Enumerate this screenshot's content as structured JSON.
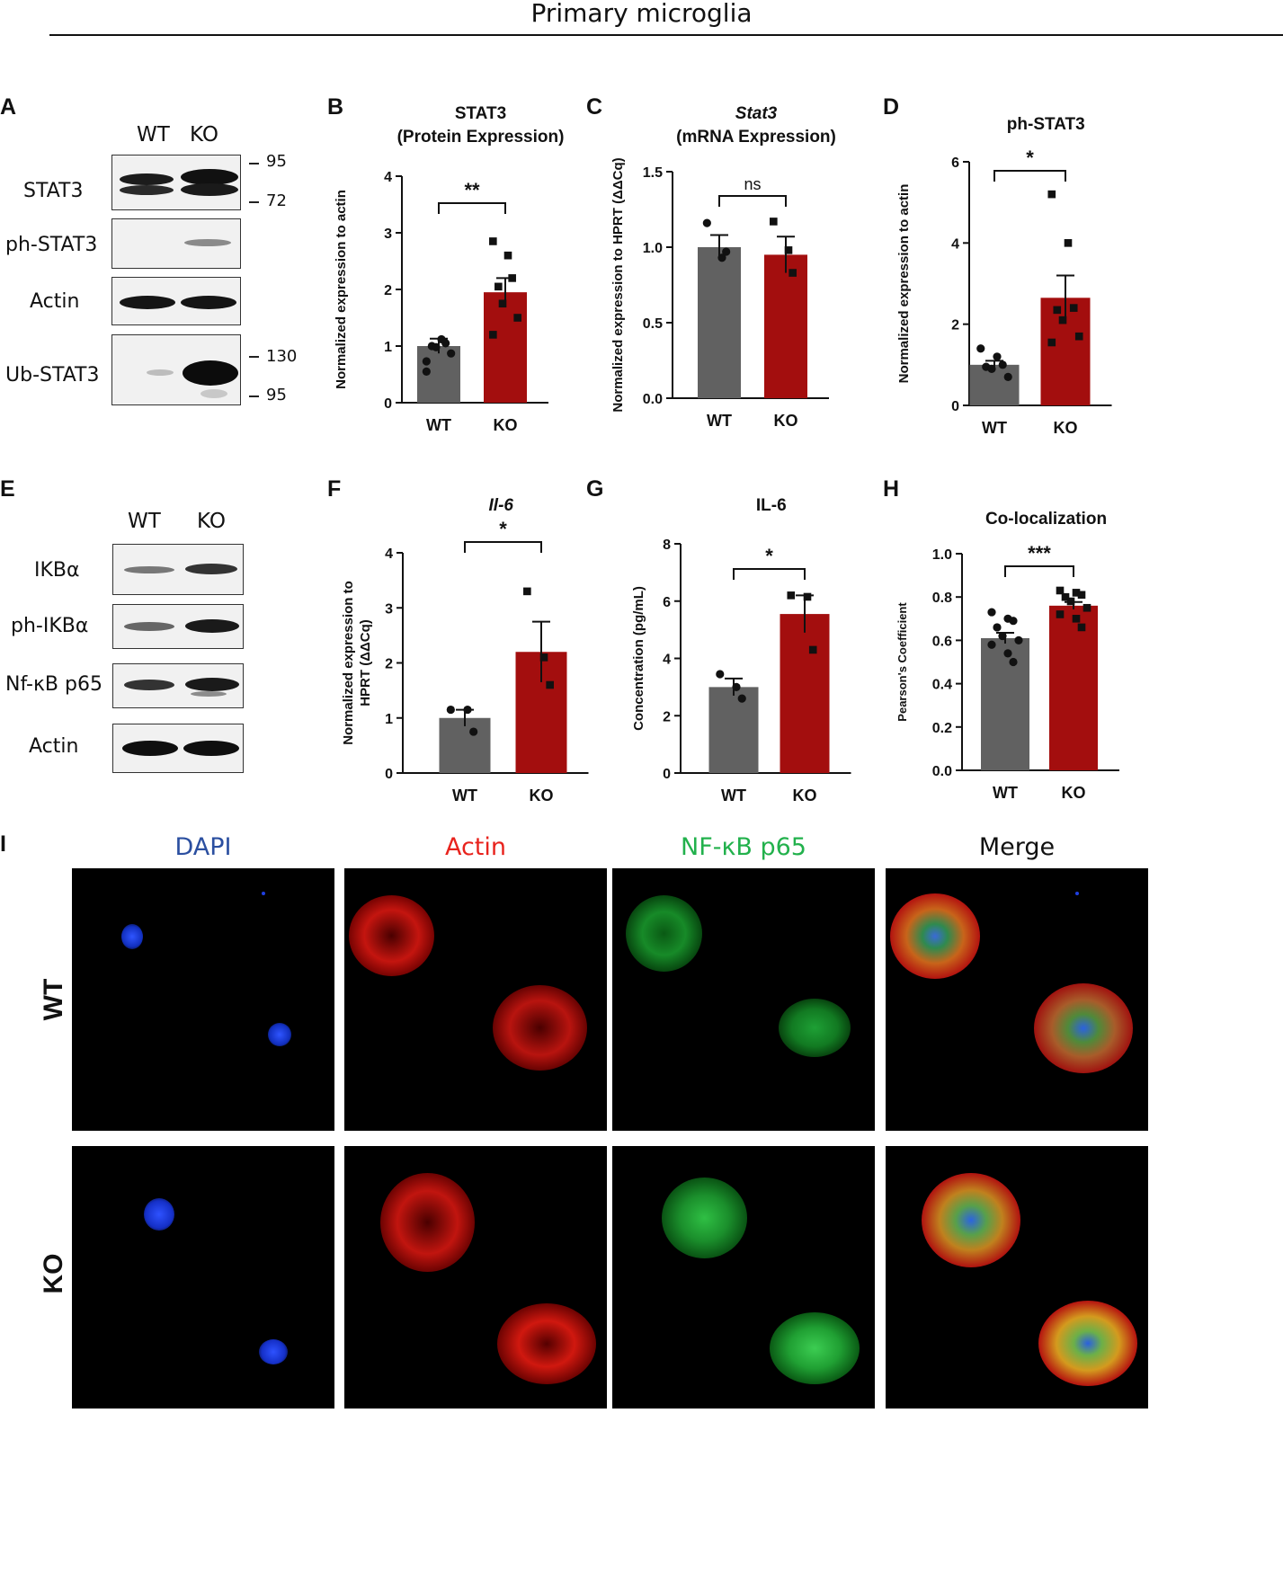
{
  "figure": {
    "title": "Primary microglia",
    "colors": {
      "wt": "#616161",
      "ko": "#a30e0e",
      "axis": "#111111"
    }
  },
  "panels": {
    "A": {
      "label": "A",
      "lanes": [
        "WT",
        "KO"
      ],
      "blots": [
        {
          "name": "STAT3",
          "markers": [
            "95",
            "72"
          ]
        },
        {
          "name": "ph-STAT3",
          "markers": []
        },
        {
          "name": "Actin",
          "markers": []
        },
        {
          "name": "Ub-STAT3",
          "markers": [
            "130",
            "95"
          ]
        }
      ]
    },
    "E": {
      "label": "E",
      "lanes": [
        "WT",
        "KO"
      ],
      "blots": [
        {
          "name": "IKBα"
        },
        {
          "name": "ph-IKBα"
        },
        {
          "name": "Nf-κB p65"
        },
        {
          "name": "Actin"
        }
      ]
    },
    "I": {
      "label": "I",
      "channels": [
        {
          "name": "DAPI",
          "color": "#2b4fa0"
        },
        {
          "name": "Actin",
          "color": "#e8231d"
        },
        {
          "name": "NF-κB p65",
          "color": "#22b14c"
        },
        {
          "name": "Merge",
          "color": "#111111"
        }
      ],
      "rows": [
        "WT",
        "KO"
      ]
    }
  },
  "chart_data": [
    {
      "id": "B",
      "type": "bar",
      "title": [
        "STAT3",
        "(Protein Expression)"
      ],
      "ylabel": "Normalized expression to actin",
      "categories": [
        "WT",
        "KO"
      ],
      "values": [
        1.0,
        1.95
      ],
      "sem": [
        0.13,
        0.25
      ],
      "ylim": [
        0,
        4
      ],
      "yticks": [
        "0",
        "1",
        "2",
        "3",
        "4"
      ],
      "significance": "**",
      "points": [
        [
          0.73,
          1.12,
          1.05,
          1.0,
          0.98,
          0.87,
          0.55
        ],
        [
          2.85,
          2.6,
          2.2,
          2.05,
          1.75,
          1.5,
          1.2
        ]
      ]
    },
    {
      "id": "C",
      "type": "bar",
      "title": [
        "Stat3",
        "(mRNA Expression)"
      ],
      "ylabel": "Normalized expression to HPRT (ΔΔCq)",
      "categories": [
        "WT",
        "KO"
      ],
      "values": [
        1.0,
        0.95
      ],
      "sem": [
        0.08,
        0.12
      ],
      "ylim": [
        0,
        1.5
      ],
      "yticks": [
        "0.0",
        "0.5",
        "1.0",
        "1.5"
      ],
      "significance": "ns",
      "points": [
        [
          1.16,
          0.93,
          0.97
        ],
        [
          1.17,
          0.98,
          0.83
        ]
      ]
    },
    {
      "id": "D",
      "type": "bar",
      "title": [
        "ph-STAT3"
      ],
      "ylabel": "Normalized expression to actin",
      "categories": [
        "WT",
        "KO"
      ],
      "values": [
        1.0,
        2.65
      ],
      "sem": [
        0.1,
        0.55
      ],
      "ylim": [
        0,
        6
      ],
      "yticks": [
        "0",
        "2",
        "4",
        "6"
      ],
      "significance": "*",
      "points": [
        [
          1.4,
          1.2,
          1.0,
          0.95,
          0.9,
          0.7
        ],
        [
          5.2,
          4.0,
          2.4,
          2.35,
          2.1,
          1.7,
          1.55
        ]
      ]
    },
    {
      "id": "F",
      "type": "bar",
      "title": [
        "Il-6"
      ],
      "ylabel": "Normalized expression to HPRT (ΔΔCq)",
      "categories": [
        "WT",
        "KO"
      ],
      "values": [
        1.0,
        2.2
      ],
      "sem": [
        0.15,
        0.55
      ],
      "ylim": [
        0,
        4
      ],
      "yticks": [
        "0",
        "1",
        "2",
        "3",
        "4"
      ],
      "significance": "*",
      "points": [
        [
          1.15,
          1.15,
          0.75
        ],
        [
          3.3,
          2.1,
          1.6
        ]
      ]
    },
    {
      "id": "G",
      "type": "bar",
      "title": [
        "IL-6"
      ],
      "ylabel": "Concentration (pg/mL)",
      "categories": [
        "WT",
        "KO"
      ],
      "values": [
        3.0,
        5.55
      ],
      "sem": [
        0.3,
        0.65
      ],
      "ylim": [
        0,
        8
      ],
      "yticks": [
        "0",
        "2",
        "4",
        "6",
        "8"
      ],
      "significance": "*",
      "points": [
        [
          3.45,
          3.0,
          2.6
        ],
        [
          6.2,
          6.15,
          4.3
        ]
      ]
    },
    {
      "id": "H",
      "type": "bar",
      "title": [
        "Co-localization"
      ],
      "ylabel": "Pearson's Coefficient",
      "categories": [
        "WT",
        "KO"
      ],
      "values": [
        0.61,
        0.76
      ],
      "sem": [
        0.025,
        0.017
      ],
      "ylim": [
        0,
        1.0
      ],
      "yticks": [
        "0.0",
        "0.2",
        "0.4",
        "0.6",
        "0.8",
        "1.0"
      ],
      "significance": "***",
      "points": [
        [
          0.73,
          0.7,
          0.69,
          0.66,
          0.62,
          0.6,
          0.58,
          0.54,
          0.5
        ],
        [
          0.83,
          0.82,
          0.81,
          0.8,
          0.78,
          0.75,
          0.72,
          0.7,
          0.66
        ]
      ]
    }
  ]
}
